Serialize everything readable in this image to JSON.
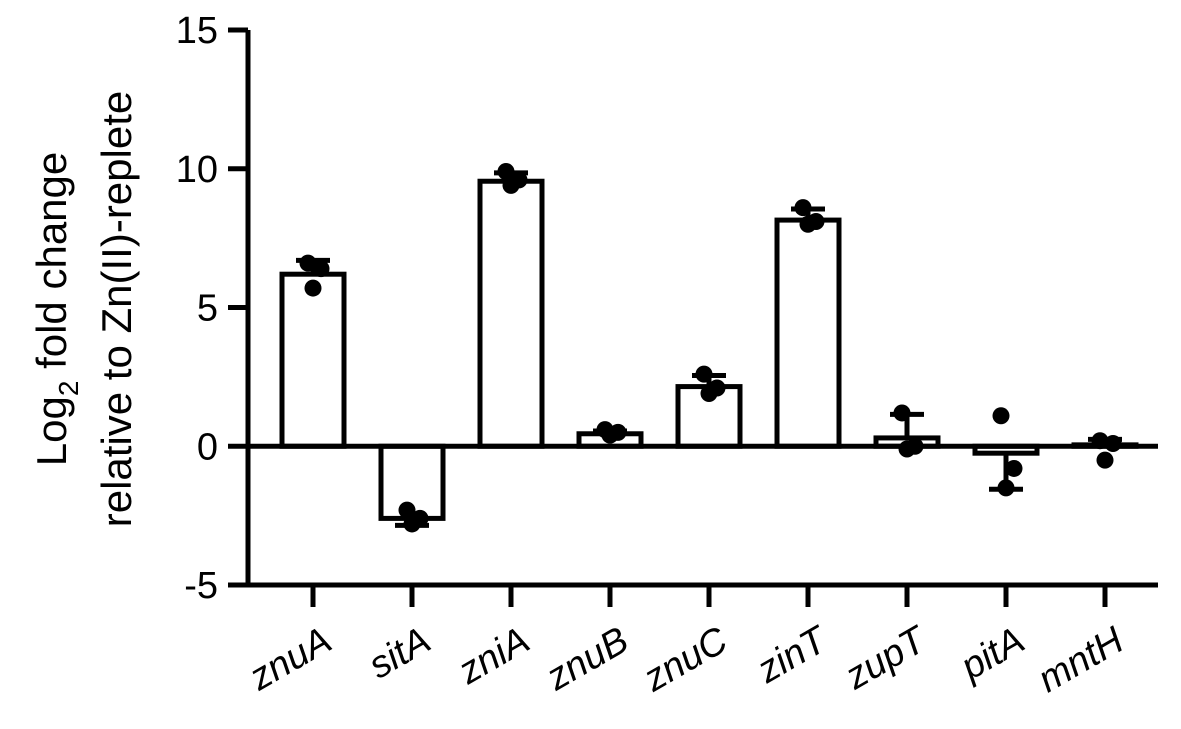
{
  "chart_data": {
    "type": "bar",
    "title": "",
    "ylabel": {
      "line1_prefix": "Log",
      "line1_subscript": "2",
      "line1_suffix": " fold change",
      "line2": "relative to Zn(II)-replete"
    },
    "xlabel": "",
    "ylim": [
      -5,
      15
    ],
    "yticks": [
      -5,
      0,
      5,
      10,
      15
    ],
    "grid": false,
    "categories": [
      "znuA",
      "sitA",
      "zniA",
      "znuB",
      "znuC",
      "zinT",
      "zupT",
      "pitA",
      "mntH"
    ],
    "values": [
      6.2,
      -2.6,
      9.55,
      0.45,
      2.15,
      8.15,
      0.3,
      -0.25,
      0.05
    ],
    "error": [
      0.5,
      0.25,
      0.3,
      0.1,
      0.4,
      0.4,
      0.85,
      1.3,
      0.2
    ],
    "points": [
      [
        6.6,
        6.4,
        5.7
      ],
      [
        -2.3,
        -2.6,
        -2.8
      ],
      [
        9.9,
        9.6,
        9.4
      ],
      [
        0.6,
        0.5,
        0.4
      ],
      [
        2.6,
        2.1,
        1.9
      ],
      [
        8.6,
        8.1,
        8.0
      ],
      [
        1.2,
        0.0,
        -0.1
      ],
      [
        1.1,
        -0.8,
        -1.5
      ],
      [
        0.2,
        0.1,
        -0.5
      ]
    ]
  }
}
